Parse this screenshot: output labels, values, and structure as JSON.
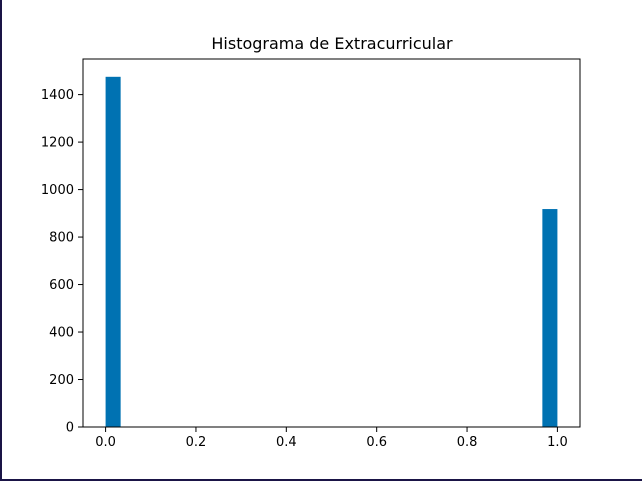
{
  "chart_data": {
    "type": "bar",
    "title": "Histograma de Extracurricular",
    "xlabel": "",
    "ylabel": "",
    "xlim": [
      -0.05,
      1.05
    ],
    "ylim": [
      0,
      1550
    ],
    "grid": false,
    "bar_color": "#0072b2",
    "bins": [
      {
        "x0": 0.0,
        "x1": 0.0333,
        "value": 1475
      },
      {
        "x0": 0.9667,
        "x1": 1.0,
        "value": 918
      }
    ],
    "xticks": [
      {
        "value": 0.0,
        "label": "0.0"
      },
      {
        "value": 0.2,
        "label": "0.2"
      },
      {
        "value": 0.4,
        "label": "0.4"
      },
      {
        "value": 0.6,
        "label": "0.6"
      },
      {
        "value": 0.8,
        "label": "0.8"
      },
      {
        "value": 1.0,
        "label": "1.0"
      }
    ],
    "yticks": [
      {
        "value": 0,
        "label": "0"
      },
      {
        "value": 200,
        "label": "200"
      },
      {
        "value": 400,
        "label": "400"
      },
      {
        "value": 600,
        "label": "600"
      },
      {
        "value": 800,
        "label": "800"
      },
      {
        "value": 1000,
        "label": "1000"
      },
      {
        "value": 1200,
        "label": "1200"
      },
      {
        "value": 1400,
        "label": "1400"
      }
    ]
  }
}
